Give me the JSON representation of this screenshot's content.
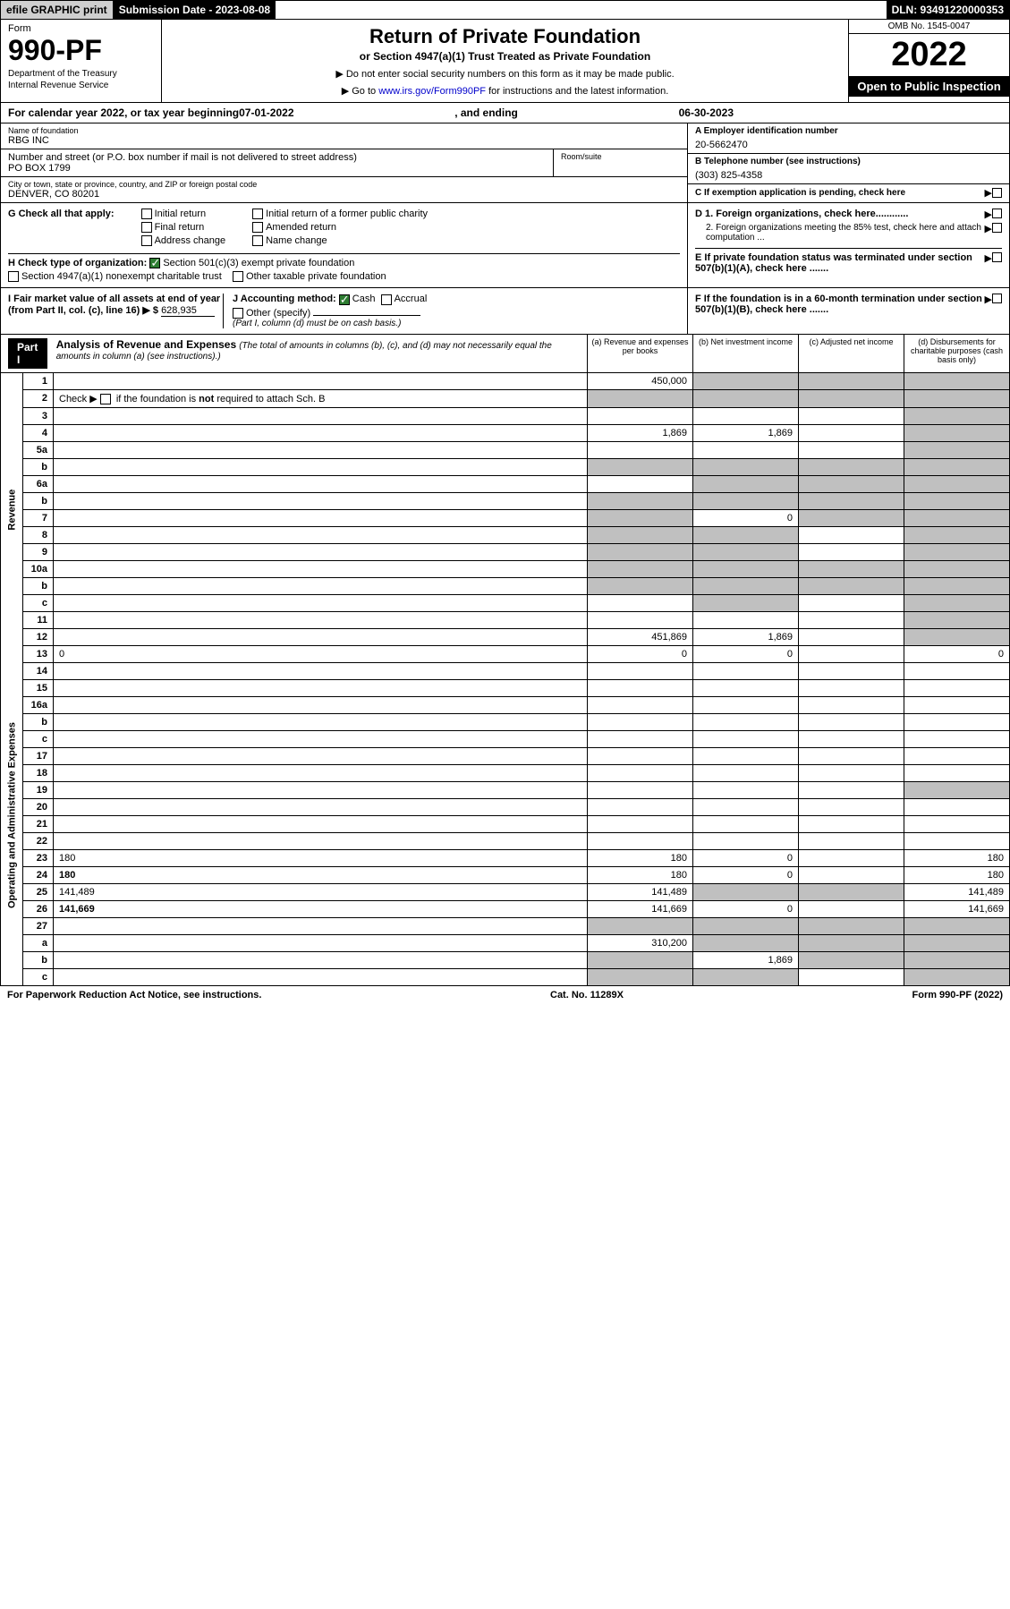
{
  "top": {
    "efile": "efile GRAPHIC print",
    "submission": "Submission Date - 2023-08-08",
    "dln": "DLN: 93491220000353"
  },
  "header": {
    "form_label": "Form",
    "form_number": "990-PF",
    "dept1": "Department of the Treasury",
    "dept2": "Internal Revenue Service",
    "title": "Return of Private Foundation",
    "subtitle": "or Section 4947(a)(1) Trust Treated as Private Foundation",
    "note1": "▶ Do not enter social security numbers on this form as it may be made public.",
    "note2_pre": "▶ Go to ",
    "note2_link": "www.irs.gov/Form990PF",
    "note2_post": " for instructions and the latest information.",
    "omb": "OMB No. 1545-0047",
    "year": "2022",
    "open": "Open to Public Inspection"
  },
  "cal": {
    "prefix": "For calendar year 2022, or tax year beginning ",
    "begin": "07-01-2022",
    "mid": ", and ending ",
    "end": "06-30-2023"
  },
  "entity": {
    "name_label": "Name of foundation",
    "name": "RBG INC",
    "addr_label": "Number and street (or P.O. box number if mail is not delivered to street address)",
    "addr": "PO BOX 1799",
    "suite_label": "Room/suite",
    "city_label": "City or town, state or province, country, and ZIP or foreign postal code",
    "city": "DENVER, CO  80201"
  },
  "right": {
    "a_label": "A Employer identification number",
    "a_val": "20-5662470",
    "b_label": "B Telephone number (see instructions)",
    "b_val": "(303) 825-4358",
    "c_label": "C If exemption application is pending, check here",
    "d1": "D 1. Foreign organizations, check here............",
    "d2": "2. Foreign organizations meeting the 85% test, check here and attach computation ...",
    "e": "E  If private foundation status was terminated under section 507(b)(1)(A), check here .......",
    "f": "F  If the foundation is in a 60-month termination under section 507(b)(1)(B), check here ......."
  },
  "g": {
    "label": "G Check all that apply:",
    "opts": [
      "Initial return",
      "Final return",
      "Address change",
      "Initial return of a former public charity",
      "Amended return",
      "Name change"
    ]
  },
  "h": {
    "label": "H Check type of organization:",
    "opt1": "Section 501(c)(3) exempt private foundation",
    "opt2": "Section 4947(a)(1) nonexempt charitable trust",
    "opt3": "Other taxable private foundation"
  },
  "i": {
    "label": "I Fair market value of all assets at end of year (from Part II, col. (c), line 16) ▶ $",
    "val": "628,935"
  },
  "j": {
    "label": "J Accounting method:",
    "cash": "Cash",
    "accrual": "Accrual",
    "other": "Other (specify)",
    "note": "(Part I, column (d) must be on cash basis.)"
  },
  "part1": {
    "head": "Part I",
    "title": "Analysis of Revenue and Expenses",
    "desc": "(The total of amounts in columns (b), (c), and (d) may not necessarily equal the amounts in column (a) (see instructions).)",
    "cols": {
      "a": "(a)   Revenue and expenses per books",
      "b": "(b)   Net investment income",
      "c": "(c)   Adjusted net income",
      "d": "(d)   Disbursements for charitable purposes (cash basis only)"
    }
  },
  "side": {
    "revenue": "Revenue",
    "opex": "Operating and Administrative Expenses"
  },
  "rows": [
    {
      "n": "1",
      "d": "",
      "a": "450,000",
      "b": "",
      "c": "",
      "sb": true,
      "sc": true,
      "sd": true
    },
    {
      "n": "2",
      "d": "",
      "a": "",
      "b": "",
      "c": "",
      "sa": true,
      "sb": true,
      "sc": true,
      "sd": true,
      "html": true
    },
    {
      "n": "3",
      "d": "",
      "a": "",
      "b": "",
      "c": "",
      "sd": true
    },
    {
      "n": "4",
      "d": "",
      "a": "1,869",
      "b": "1,869",
      "c": "",
      "sd": true
    },
    {
      "n": "5a",
      "d": "",
      "a": "",
      "b": "",
      "c": "",
      "sd": true
    },
    {
      "n": "b",
      "d": "",
      "a": "",
      "b": "",
      "c": "",
      "sa": true,
      "sb": true,
      "sc": true,
      "sd": true,
      "sub": true
    },
    {
      "n": "6a",
      "d": "",
      "a": "",
      "b": "",
      "c": "",
      "sb": true,
      "sc": true,
      "sd": true
    },
    {
      "n": "b",
      "d": "",
      "a": "",
      "b": "",
      "c": "",
      "sa": true,
      "sb": true,
      "sc": true,
      "sd": true,
      "sub": true
    },
    {
      "n": "7",
      "d": "",
      "a": "",
      "b": "0",
      "c": "",
      "sa": true,
      "sc": true,
      "sd": true
    },
    {
      "n": "8",
      "d": "",
      "a": "",
      "b": "",
      "c": "",
      "sa": true,
      "sb": true,
      "sd": true
    },
    {
      "n": "9",
      "d": "",
      "a": "",
      "b": "",
      "c": "",
      "sa": true,
      "sb": true,
      "sd": true
    },
    {
      "n": "10a",
      "d": "",
      "a": "",
      "b": "",
      "c": "",
      "sa": true,
      "sb": true,
      "sc": true,
      "sd": true,
      "sub": true
    },
    {
      "n": "b",
      "d": "",
      "a": "",
      "b": "",
      "c": "",
      "sa": true,
      "sb": true,
      "sc": true,
      "sd": true,
      "sub": true
    },
    {
      "n": "c",
      "d": "",
      "a": "",
      "b": "",
      "c": "",
      "sb": true,
      "sd": true
    },
    {
      "n": "11",
      "d": "",
      "a": "",
      "b": "",
      "c": "",
      "sd": true
    },
    {
      "n": "12",
      "d": "",
      "a": "451,869",
      "b": "1,869",
      "c": "",
      "bold": true,
      "sd": true
    },
    {
      "n": "13",
      "d": "0",
      "a": "0",
      "b": "0",
      "c": ""
    },
    {
      "n": "14",
      "d": "",
      "a": "",
      "b": "",
      "c": ""
    },
    {
      "n": "15",
      "d": "",
      "a": "",
      "b": "",
      "c": ""
    },
    {
      "n": "16a",
      "d": "",
      "a": "",
      "b": "",
      "c": ""
    },
    {
      "n": "b",
      "d": "",
      "a": "",
      "b": "",
      "c": ""
    },
    {
      "n": "c",
      "d": "",
      "a": "",
      "b": "",
      "c": ""
    },
    {
      "n": "17",
      "d": "",
      "a": "",
      "b": "",
      "c": ""
    },
    {
      "n": "18",
      "d": "",
      "a": "",
      "b": "",
      "c": ""
    },
    {
      "n": "19",
      "d": "",
      "a": "",
      "b": "",
      "c": "",
      "sd": true
    },
    {
      "n": "20",
      "d": "",
      "a": "",
      "b": "",
      "c": ""
    },
    {
      "n": "21",
      "d": "",
      "a": "",
      "b": "",
      "c": ""
    },
    {
      "n": "22",
      "d": "",
      "a": "",
      "b": "",
      "c": ""
    },
    {
      "n": "23",
      "d": "180",
      "a": "180",
      "b": "0",
      "c": ""
    },
    {
      "n": "24",
      "d": "180",
      "a": "180",
      "b": "0",
      "c": "",
      "bold": true
    },
    {
      "n": "25",
      "d": "141,489",
      "a": "141,489",
      "b": "",
      "c": "",
      "sb": true,
      "sc": true
    },
    {
      "n": "26",
      "d": "141,669",
      "a": "141,669",
      "b": "0",
      "c": "",
      "bold": true
    },
    {
      "n": "27",
      "d": "",
      "a": "",
      "b": "",
      "c": "",
      "sa": true,
      "sb": true,
      "sc": true,
      "sd": true
    },
    {
      "n": "a",
      "d": "",
      "a": "310,200",
      "b": "",
      "c": "",
      "bold": true,
      "sb": true,
      "sc": true,
      "sd": true
    },
    {
      "n": "b",
      "d": "",
      "a": "",
      "b": "1,869",
      "c": "",
      "bold": true,
      "sa": true,
      "sc": true,
      "sd": true
    },
    {
      "n": "c",
      "d": "",
      "a": "",
      "b": "",
      "c": "",
      "bold": true,
      "sa": true,
      "sb": true,
      "sd": true
    }
  ],
  "footer": {
    "left": "For Paperwork Reduction Act Notice, see instructions.",
    "mid": "Cat. No. 11289X",
    "right": "Form 990-PF (2022)"
  }
}
